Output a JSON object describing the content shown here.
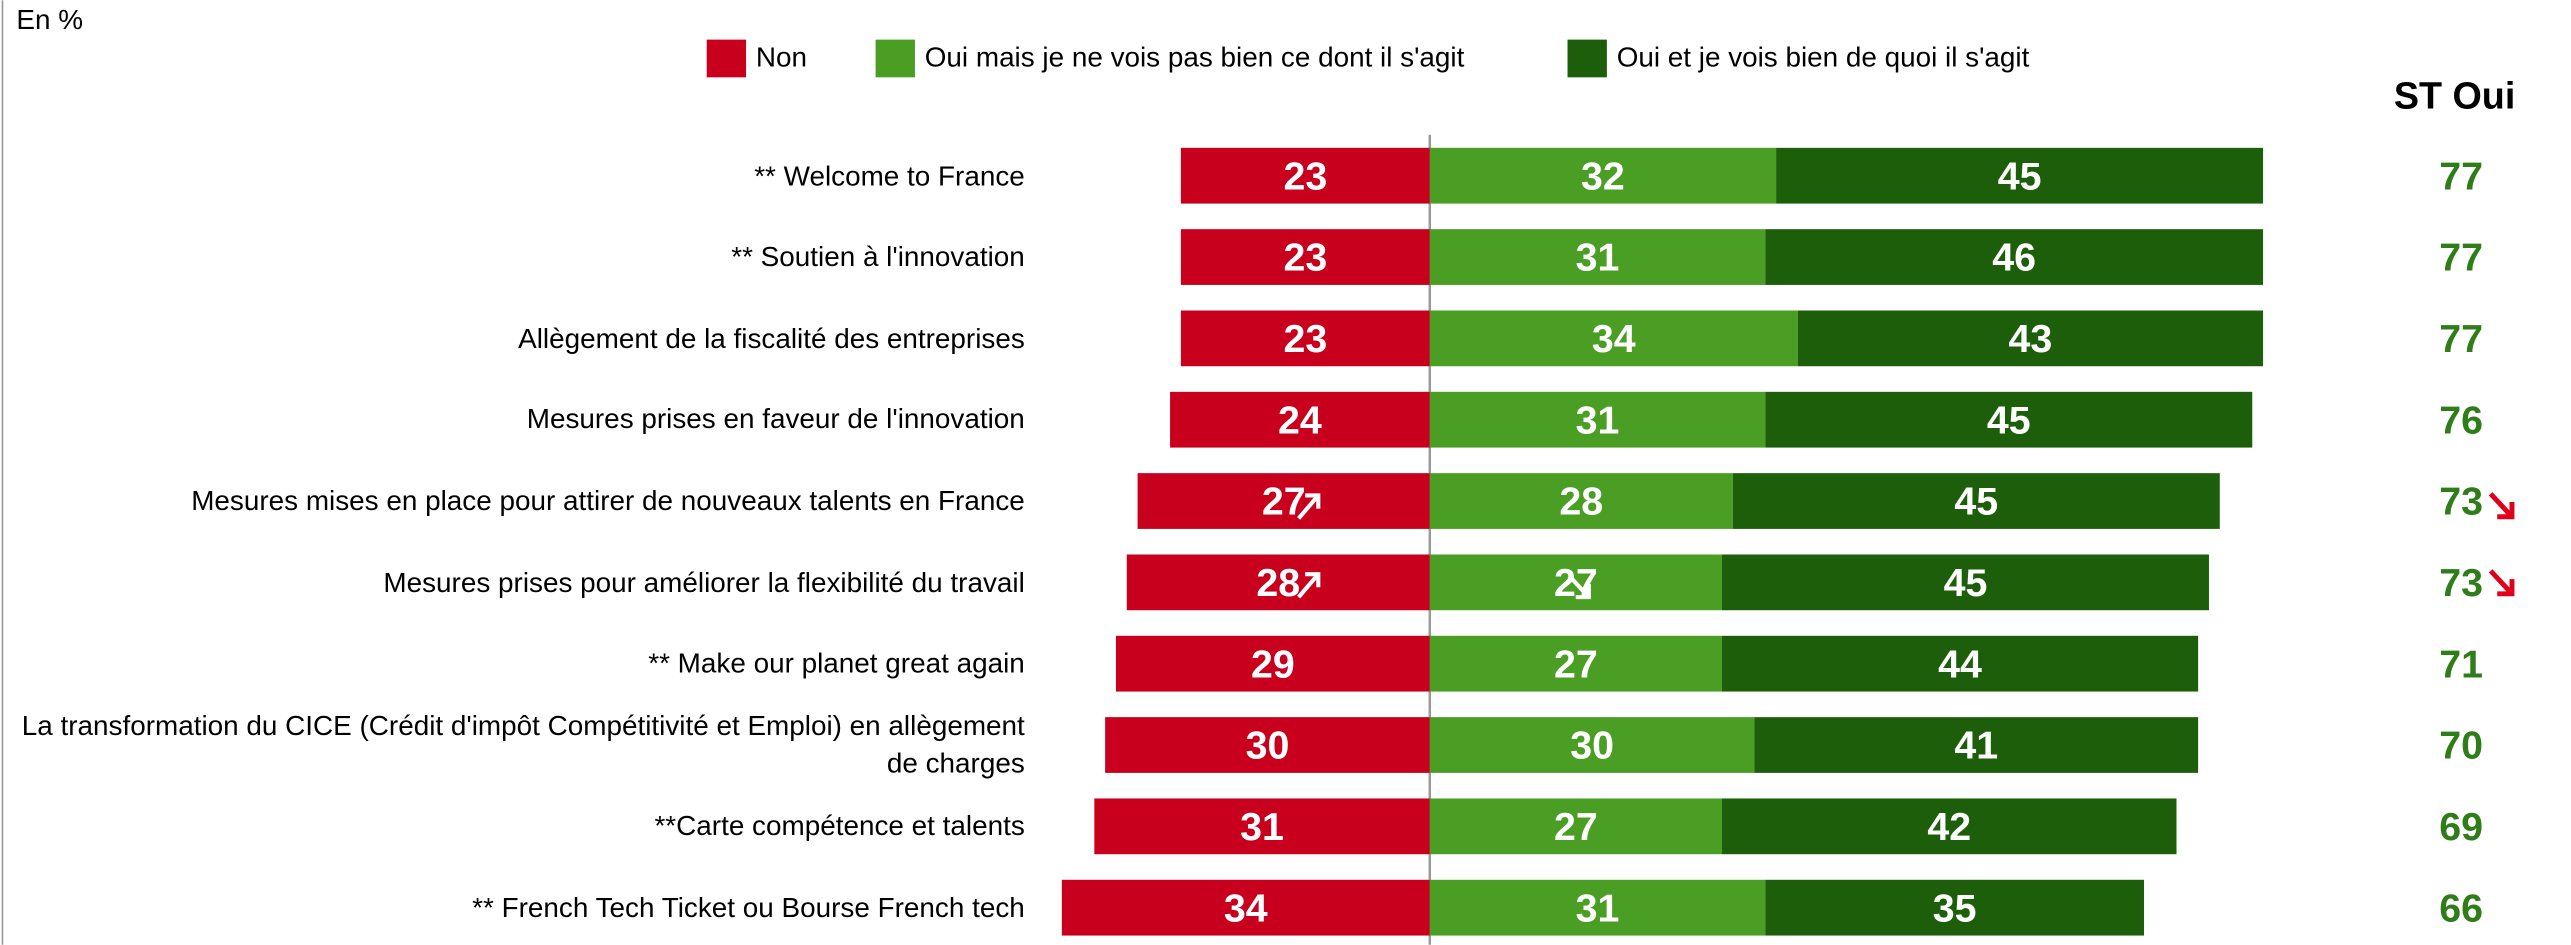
{
  "chart_data": {
    "type": "bar",
    "layout": "diverging",
    "note": "En %",
    "total_title": "ST Oui",
    "categories": [
      "** Welcome to France",
      "** Soutien à l'innovation",
      "Allègement de la fiscalité des entreprises",
      "Mesures prises en faveur de l'innovation",
      "Mesures mises en place pour attirer de nouveaux talents en France",
      "Mesures prises pour améliorer la flexibilité du travail",
      "** Make our planet great again",
      "La transformation du CICE (Crédit d'impôt Compétitivité et Emploi) en allègement de charges",
      "**Carte compétence et talents",
      "**  French Tech Ticket ou Bourse French tech"
    ],
    "series": [
      {
        "name": "Non",
        "color": "#c8001e",
        "side": "left",
        "values": [
          23,
          23,
          23,
          24,
          27,
          28,
          29,
          30,
          31,
          34
        ]
      },
      {
        "name": "Oui mais je ne vois pas bien ce dont il s'agit",
        "color": "#4a9e24",
        "side": "right",
        "values": [
          32,
          31,
          34,
          31,
          28,
          27,
          27,
          30,
          27,
          31
        ]
      },
      {
        "name": "Oui et je vois bien de quoi il s'agit",
        "color": "#1d5e0b",
        "side": "right",
        "values": [
          45,
          46,
          43,
          45,
          45,
          45,
          44,
          41,
          42,
          35
        ]
      }
    ],
    "totals": [
      77,
      77,
      77,
      76,
      73,
      73,
      71,
      70,
      69,
      66
    ],
    "total_color": "#2f7d18"
  }
}
